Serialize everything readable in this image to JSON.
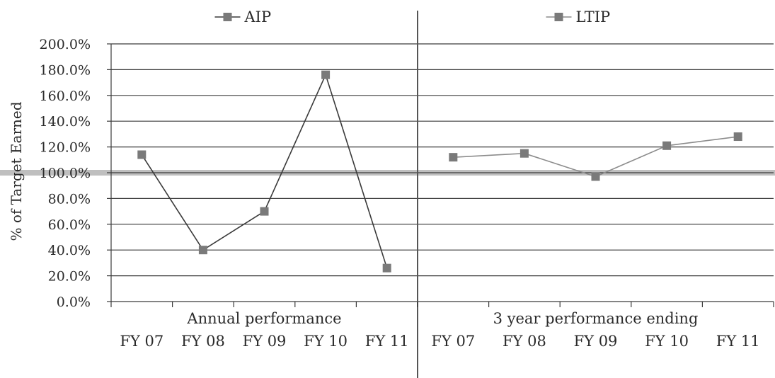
{
  "chart_data": {
    "type": "line",
    "ylabel": "% of Target Earned",
    "yticks": [
      "0.0%",
      "20.0%",
      "40.0%",
      "60.0%",
      "80.0%",
      "100.0%",
      "120.0%",
      "140.0%",
      "160.0%",
      "180.0%",
      "200.0%"
    ],
    "ylim": [
      0,
      200
    ],
    "reference_line": 100,
    "grid": true,
    "legend_position": "top-center",
    "panels": [
      {
        "group_label": "Annual performance",
        "categories": [
          "FY 07",
          "FY 08",
          "FY 09",
          "FY 10",
          "FY 11"
        ],
        "series": [
          {
            "name": "AIP",
            "values": [
              114,
              40,
              70,
              176,
              26
            ],
            "color": "#3a3a3a",
            "marker_color": "#7a7a7a"
          }
        ]
      },
      {
        "group_label": "3 year performance ending",
        "categories": [
          "FY 07",
          "FY 08",
          "FY 09",
          "FY 10",
          "FY 11"
        ],
        "series": [
          {
            "name": "LTIP",
            "values": [
              112,
              115,
              97,
              121,
              128
            ],
            "color": "#8c8c8c",
            "marker_color": "#7a7a7a"
          }
        ]
      }
    ]
  }
}
